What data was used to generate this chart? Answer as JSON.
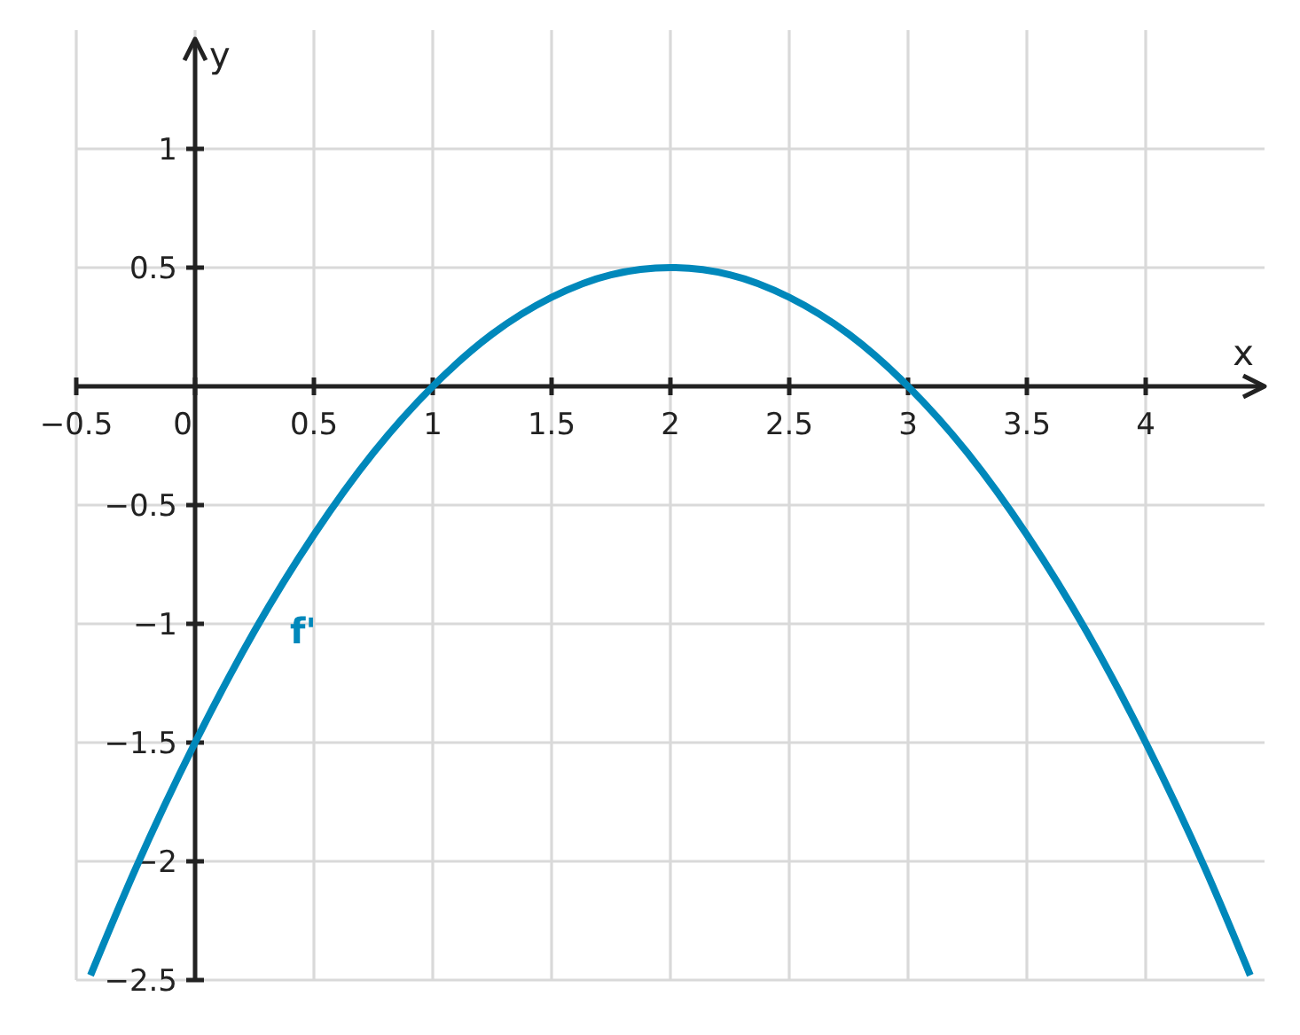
{
  "chart_data": {
    "type": "line",
    "xlabel": "x",
    "ylabel": "y",
    "x": [
      -0.44,
      -0.25,
      0,
      0.25,
      0.5,
      0.75,
      1,
      1.25,
      1.5,
      1.75,
      2,
      2.25,
      2.5,
      2.75,
      3,
      3.25,
      3.5,
      3.75,
      4,
      4.25,
      4.44
    ],
    "series": [
      {
        "name": "f'",
        "color": "#0088bb",
        "values": [
          -2.48,
          -2.03,
          -1.5,
          -1.03,
          -0.625,
          -0.28,
          0,
          0.22,
          0.375,
          0.47,
          0.5,
          0.47,
          0.375,
          0.22,
          0,
          -0.28,
          -0.625,
          -1.03,
          -1.5,
          -2.03,
          -2.48
        ]
      }
    ],
    "xlim": [
      -0.5,
      4.5
    ],
    "ylim": [
      -2.5,
      1.5
    ],
    "xticks": [
      -0.5,
      0,
      0.5,
      1,
      1.5,
      2,
      2.5,
      3,
      3.5,
      4
    ],
    "yticks": [
      -2.5,
      -2,
      -1.5,
      -1,
      -0.5,
      0.5,
      1
    ],
    "grid": true
  }
}
